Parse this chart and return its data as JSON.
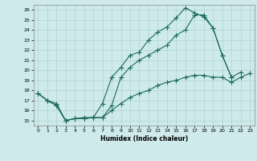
{
  "title": "",
  "xlabel": "Humidex (Indice chaleur)",
  "xlim": [
    -0.5,
    23.5
  ],
  "ylim": [
    14.5,
    26.5
  ],
  "xticks": [
    0,
    1,
    2,
    3,
    4,
    5,
    6,
    7,
    8,
    9,
    10,
    11,
    12,
    13,
    14,
    15,
    16,
    17,
    18,
    19,
    20,
    21,
    22,
    23
  ],
  "yticks": [
    15,
    16,
    17,
    18,
    19,
    20,
    21,
    22,
    23,
    24,
    25,
    26
  ],
  "bg_color": "#ceeaea",
  "grid_color": "#b0d4d4",
  "line_color": "#1e6b5e",
  "line1_x": [
    0,
    1,
    2,
    3,
    4,
    5,
    6,
    7,
    8,
    9,
    10,
    11,
    12,
    13,
    14,
    15,
    16,
    17,
    18,
    19,
    20,
    21
  ],
  "line1_y": [
    17.7,
    17.0,
    16.5,
    15.0,
    15.2,
    15.2,
    15.3,
    16.7,
    19.3,
    20.3,
    21.5,
    21.8,
    23.0,
    23.8,
    24.3,
    25.2,
    26.2,
    25.7,
    25.3,
    24.2,
    21.5,
    19.3
  ],
  "line2_x": [
    0,
    1,
    2,
    3,
    4,
    5,
    6,
    7,
    8,
    9,
    10,
    11,
    12,
    13,
    14,
    15,
    16,
    17,
    18,
    19,
    20,
    21,
    22
  ],
  "line2_y": [
    17.7,
    17.0,
    16.5,
    15.0,
    15.2,
    15.2,
    15.3,
    15.3,
    16.5,
    19.3,
    20.3,
    21.0,
    21.5,
    22.0,
    22.5,
    23.5,
    24.0,
    25.5,
    25.5,
    24.2,
    21.5,
    19.3,
    19.8
  ],
  "line3_x": [
    0,
    1,
    2,
    3,
    4,
    5,
    6,
    7,
    8,
    9,
    10,
    11,
    12,
    13,
    14,
    15,
    16,
    17,
    18,
    19,
    20,
    21,
    22,
    23
  ],
  "line3_y": [
    17.7,
    17.0,
    16.7,
    15.0,
    15.2,
    15.3,
    15.3,
    15.3,
    16.0,
    16.7,
    17.3,
    17.7,
    18.0,
    18.5,
    18.8,
    19.0,
    19.3,
    19.5,
    19.5,
    19.3,
    19.3,
    18.8,
    19.3,
    19.7
  ]
}
